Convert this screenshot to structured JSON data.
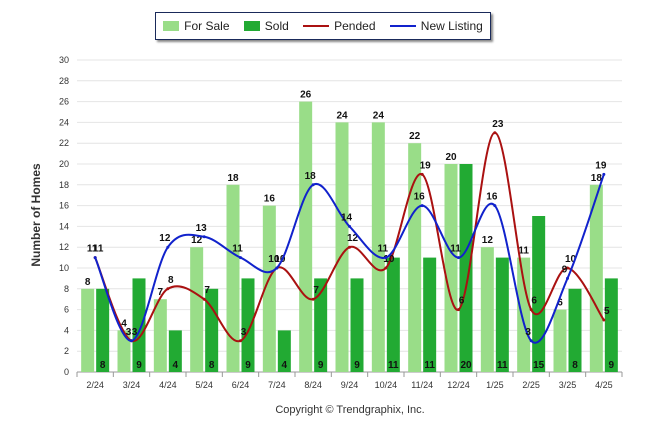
{
  "chart_data": {
    "type": "bar",
    "categories": [
      "2/24",
      "3/24",
      "4/24",
      "5/24",
      "6/24",
      "7/24",
      "8/24",
      "9/24",
      "10/24",
      "11/24",
      "12/24",
      "1/25",
      "2/25",
      "3/25",
      "4/25"
    ],
    "series": [
      {
        "name": "For Sale",
        "kind": "bar",
        "color": "#99dd88",
        "values": [
          8,
          4,
          7,
          12,
          18,
          16,
          26,
          24,
          24,
          22,
          20,
          12,
          11,
          6,
          18
        ]
      },
      {
        "name": "Sold",
        "kind": "bar",
        "color": "#22aa33",
        "values": [
          8,
          9,
          4,
          8,
          9,
          4,
          9,
          9,
          11,
          11,
          20,
          11,
          15,
          8,
          9
        ]
      },
      {
        "name": "Pended",
        "kind": "line",
        "color": "#aa1111",
        "values": [
          11,
          3,
          8,
          7,
          3,
          10,
          7,
          12,
          10,
          19,
          6,
          23,
          6,
          10,
          5
        ]
      },
      {
        "name": "New Listing",
        "kind": "line",
        "color": "#1122cc",
        "values": [
          11,
          3,
          12,
          13,
          11,
          10,
          18,
          14,
          11,
          16,
          11,
          16,
          3,
          9,
          19
        ]
      }
    ],
    "xlabel": "",
    "ylabel": "Number of Homes",
    "ylim": [
      0,
      30
    ],
    "yticks": [
      0,
      2,
      4,
      6,
      8,
      10,
      12,
      14,
      16,
      18,
      20,
      22,
      24,
      26,
      28,
      30
    ],
    "grid": true,
    "legend": "top"
  },
  "copyright": "Copyright © Trendgraphix, Inc."
}
